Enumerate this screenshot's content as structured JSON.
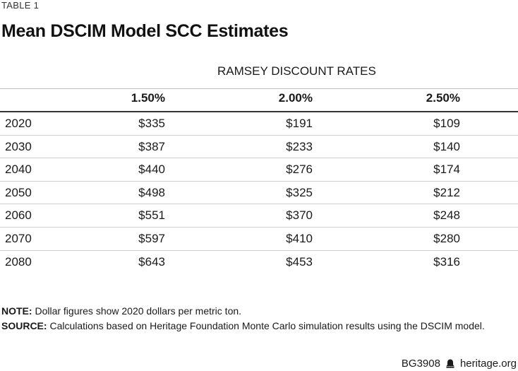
{
  "table_label": "TABLE 1",
  "title": "Mean DSCIM Model SCC Estimates",
  "group_header": "RAMSEY DISCOUNT RATES",
  "columns": [
    "1.50%",
    "2.00%",
    "2.50%"
  ],
  "rows": [
    {
      "year": "2020",
      "values": [
        "$335",
        "$191",
        "$109"
      ]
    },
    {
      "year": "2030",
      "values": [
        "$387",
        "$233",
        "$140"
      ]
    },
    {
      "year": "2040",
      "values": [
        "$440",
        "$276",
        "$174"
      ]
    },
    {
      "year": "2050",
      "values": [
        "$498",
        "$325",
        "$212"
      ]
    },
    {
      "year": "2060",
      "values": [
        "$551",
        "$370",
        "$248"
      ]
    },
    {
      "year": "2070",
      "values": [
        "$597",
        "$410",
        "$280"
      ]
    },
    {
      "year": "2080",
      "values": [
        "$643",
        "$453",
        "$316"
      ]
    }
  ],
  "note": {
    "label": "NOTE:",
    "text": " Dollar figures show 2020 dollars per metric ton."
  },
  "source": {
    "label": "SOURCE:",
    "text": " Calculations based on Heritage Foundation Monte Carlo simulation results using the DSCIM model."
  },
  "footer": {
    "code": "BG3908",
    "icon": "bell-icon",
    "site": "heritage.org"
  }
}
